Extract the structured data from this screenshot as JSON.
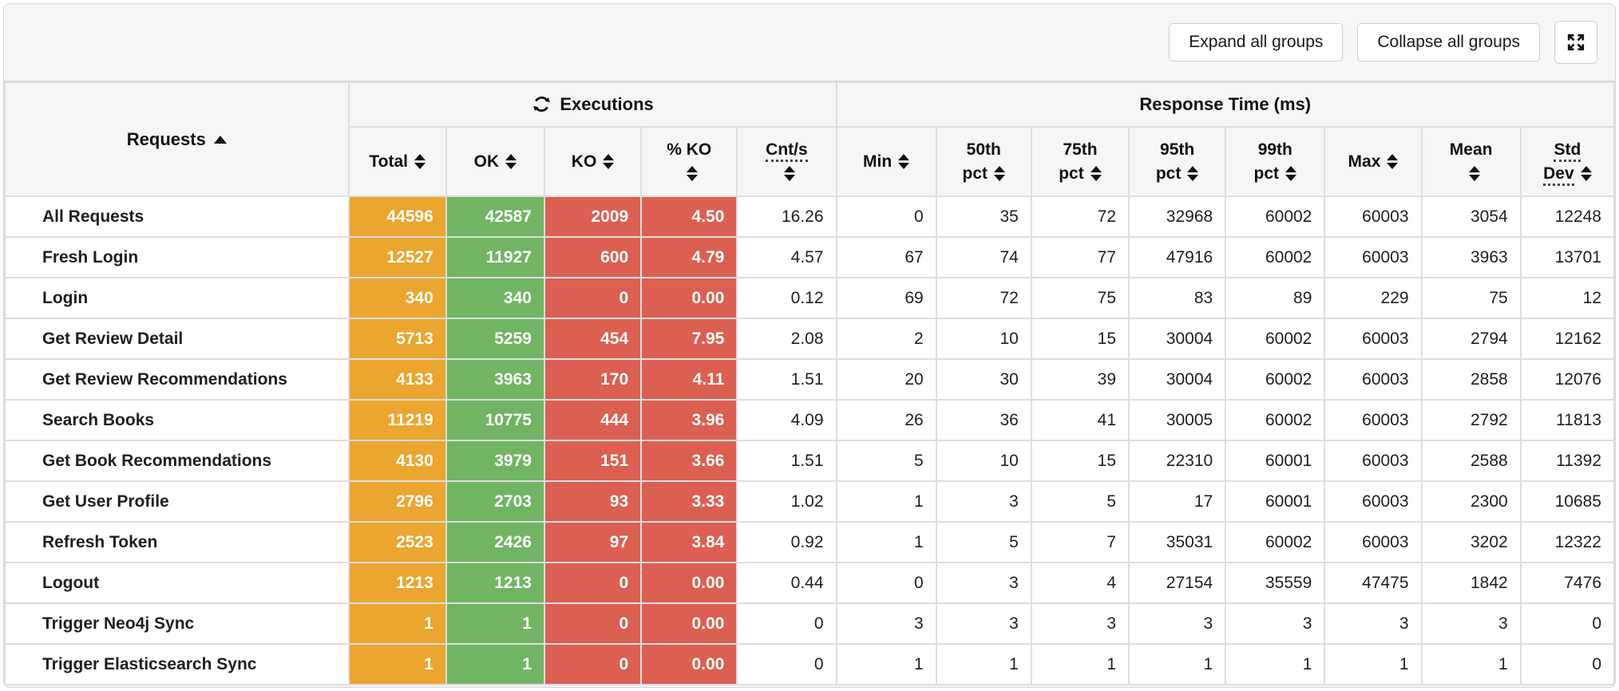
{
  "toolbar": {
    "expand_label": "Expand all groups",
    "collapse_label": "Collapse all groups",
    "fullscreen_icon": "fullscreen-expand"
  },
  "colors": {
    "total_bg": "#eaa62f",
    "ok_bg": "#71b564",
    "ko_bg": "#db6051",
    "header_bg": "#f6f6f6",
    "border": "#dedede"
  },
  "table": {
    "groups": {
      "requests": "Requests",
      "requests_sort": "ascending",
      "executions": "Executions",
      "response_time": "Response Time (ms)"
    },
    "columns": [
      {
        "key": "total",
        "line1": "Total",
        "line2": null,
        "underline": false
      },
      {
        "key": "ok",
        "line1": "OK",
        "line2": null,
        "underline": false
      },
      {
        "key": "ko",
        "line1": "KO",
        "line2": null,
        "underline": false
      },
      {
        "key": "pct_ko",
        "line1": "% KO",
        "line2": "",
        "underline": false
      },
      {
        "key": "cnt_s",
        "line1": "Cnt/s",
        "line2": "",
        "underline": true
      },
      {
        "key": "min",
        "line1": "Min",
        "line2": null,
        "underline": false
      },
      {
        "key": "pct50",
        "line1": "50th",
        "line2": "pct",
        "underline": false
      },
      {
        "key": "pct75",
        "line1": "75th",
        "line2": "pct",
        "underline": false
      },
      {
        "key": "pct95",
        "line1": "95th",
        "line2": "pct",
        "underline": false
      },
      {
        "key": "pct99",
        "line1": "99th",
        "line2": "pct",
        "underline": false
      },
      {
        "key": "max",
        "line1": "Max",
        "line2": null,
        "underline": false
      },
      {
        "key": "mean",
        "line1": "Mean",
        "line2": "",
        "underline": false
      },
      {
        "key": "std_dev",
        "line1": "Std",
        "line2": "Dev",
        "underline": true
      }
    ],
    "rows": [
      {
        "name": "All Requests",
        "total": "44596",
        "ok": "42587",
        "ko": "2009",
        "pct_ko": "4.50",
        "cnt_s": "16.26",
        "min": "0",
        "pct50": "35",
        "pct75": "72",
        "pct95": "32968",
        "pct99": "60002",
        "max": "60003",
        "mean": "3054",
        "std_dev": "12248"
      },
      {
        "name": "Fresh Login",
        "total": "12527",
        "ok": "11927",
        "ko": "600",
        "pct_ko": "4.79",
        "cnt_s": "4.57",
        "min": "67",
        "pct50": "74",
        "pct75": "77",
        "pct95": "47916",
        "pct99": "60002",
        "max": "60003",
        "mean": "3963",
        "std_dev": "13701"
      },
      {
        "name": "Login",
        "total": "340",
        "ok": "340",
        "ko": "0",
        "pct_ko": "0.00",
        "cnt_s": "0.12",
        "min": "69",
        "pct50": "72",
        "pct75": "75",
        "pct95": "83",
        "pct99": "89",
        "max": "229",
        "mean": "75",
        "std_dev": "12"
      },
      {
        "name": "Get Review Detail",
        "total": "5713",
        "ok": "5259",
        "ko": "454",
        "pct_ko": "7.95",
        "cnt_s": "2.08",
        "min": "2",
        "pct50": "10",
        "pct75": "15",
        "pct95": "30004",
        "pct99": "60002",
        "max": "60003",
        "mean": "2794",
        "std_dev": "12162"
      },
      {
        "name": "Get Review Recommendations",
        "total": "4133",
        "ok": "3963",
        "ko": "170",
        "pct_ko": "4.11",
        "cnt_s": "1.51",
        "min": "20",
        "pct50": "30",
        "pct75": "39",
        "pct95": "30004",
        "pct99": "60002",
        "max": "60003",
        "mean": "2858",
        "std_dev": "12076"
      },
      {
        "name": "Search Books",
        "total": "11219",
        "ok": "10775",
        "ko": "444",
        "pct_ko": "3.96",
        "cnt_s": "4.09",
        "min": "26",
        "pct50": "36",
        "pct75": "41",
        "pct95": "30005",
        "pct99": "60002",
        "max": "60003",
        "mean": "2792",
        "std_dev": "11813"
      },
      {
        "name": "Get Book Recommendations",
        "total": "4130",
        "ok": "3979",
        "ko": "151",
        "pct_ko": "3.66",
        "cnt_s": "1.51",
        "min": "5",
        "pct50": "10",
        "pct75": "15",
        "pct95": "22310",
        "pct99": "60001",
        "max": "60003",
        "mean": "2588",
        "std_dev": "11392"
      },
      {
        "name": "Get User Profile",
        "total": "2796",
        "ok": "2703",
        "ko": "93",
        "pct_ko": "3.33",
        "cnt_s": "1.02",
        "min": "1",
        "pct50": "3",
        "pct75": "5",
        "pct95": "17",
        "pct99": "60001",
        "max": "60003",
        "mean": "2300",
        "std_dev": "10685"
      },
      {
        "name": "Refresh Token",
        "total": "2523",
        "ok": "2426",
        "ko": "97",
        "pct_ko": "3.84",
        "cnt_s": "0.92",
        "min": "1",
        "pct50": "5",
        "pct75": "7",
        "pct95": "35031",
        "pct99": "60002",
        "max": "60003",
        "mean": "3202",
        "std_dev": "12322"
      },
      {
        "name": "Logout",
        "total": "1213",
        "ok": "1213",
        "ko": "0",
        "pct_ko": "0.00",
        "cnt_s": "0.44",
        "min": "0",
        "pct50": "3",
        "pct75": "4",
        "pct95": "27154",
        "pct99": "35559",
        "max": "47475",
        "mean": "1842",
        "std_dev": "7476"
      },
      {
        "name": "Trigger Neo4j Sync",
        "total": "1",
        "ok": "1",
        "ko": "0",
        "pct_ko": "0.00",
        "cnt_s": "0",
        "min": "3",
        "pct50": "3",
        "pct75": "3",
        "pct95": "3",
        "pct99": "3",
        "max": "3",
        "mean": "3",
        "std_dev": "0"
      },
      {
        "name": "Trigger Elasticsearch Sync",
        "total": "1",
        "ok": "1",
        "ko": "0",
        "pct_ko": "0.00",
        "cnt_s": "0",
        "min": "1",
        "pct50": "1",
        "pct75": "1",
        "pct95": "1",
        "pct99": "1",
        "max": "1",
        "mean": "1",
        "std_dev": "0"
      }
    ]
  }
}
